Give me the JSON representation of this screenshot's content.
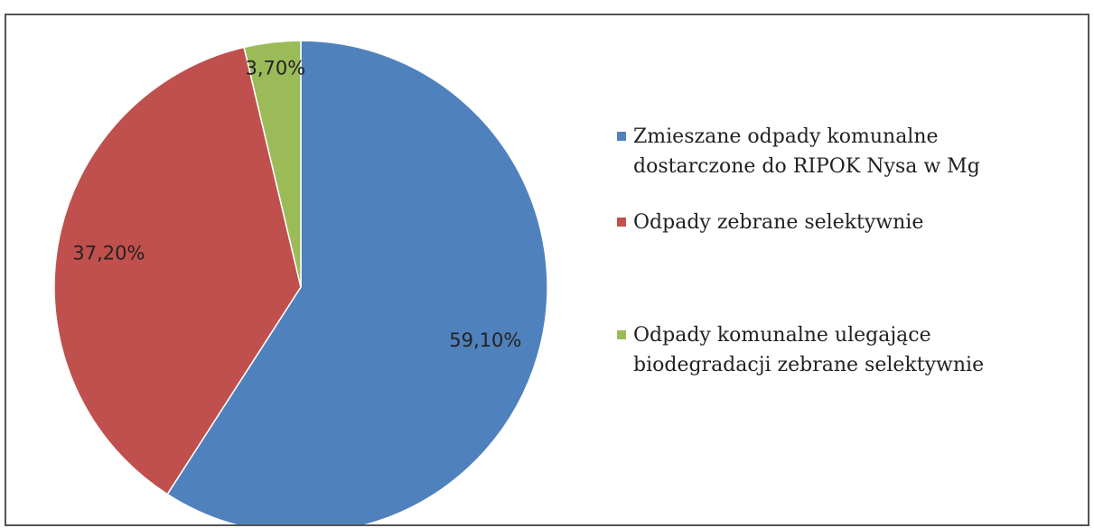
{
  "chart_data": {
    "type": "pie",
    "categories": [
      "Zmieszane odpady komunalne dostarczone do RIPOK Nysa w Mg",
      "Odpady zebrane selektywnie",
      "Odpady komunalne ulegające biodegradacji zebrane selektywnie"
    ],
    "values": [
      59.1,
      37.2,
      3.7
    ],
    "value_labels": [
      "59,10%",
      "37,20%",
      "3,70%"
    ],
    "colors": [
      "#4f81bd",
      "#c0504d",
      "#9bbb59"
    ],
    "legend": "right"
  }
}
